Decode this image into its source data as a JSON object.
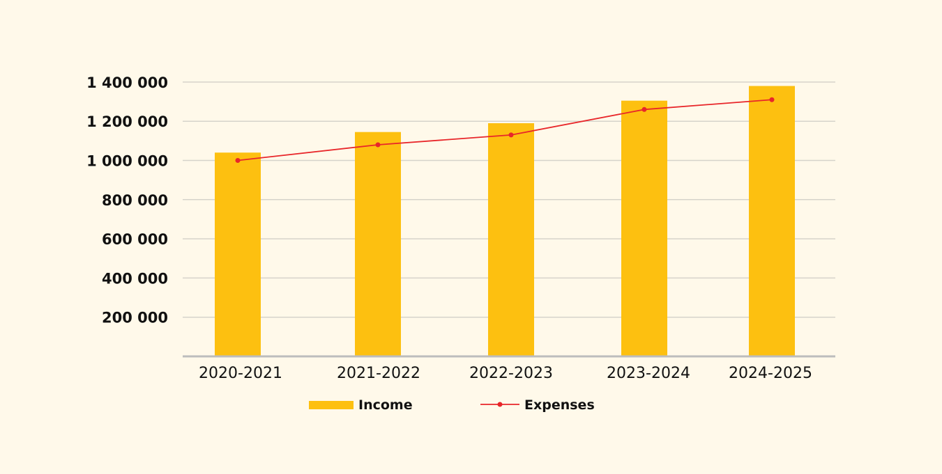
{
  "chart_data": {
    "type": "bar",
    "title": "",
    "xlabel": "",
    "ylabel": "",
    "categories": [
      "2020-2021",
      "2021-2022",
      "2022-2023",
      "2023-2024",
      "2024-2025"
    ],
    "series": [
      {
        "name": "Income",
        "type": "bar",
        "color": "#fdc010",
        "values": [
          1040000,
          1145000,
          1190000,
          1305000,
          1380000
        ]
      },
      {
        "name": "Expenses",
        "type": "line",
        "color": "#e8262a",
        "values": [
          1000000,
          1080000,
          1130000,
          1260000,
          1310000
        ]
      }
    ],
    "ylim": [
      0,
      1400000
    ],
    "yticks": [
      200000,
      400000,
      600000,
      800000,
      1000000,
      1200000,
      1400000
    ],
    "ytick_labels": [
      "200 000",
      "400 000",
      "600 000",
      "800 000",
      "1 000 000",
      "1 200 000",
      "1 400 000"
    ],
    "grid": true,
    "legend": "bottom-center",
    "background": "#fff9ea"
  }
}
